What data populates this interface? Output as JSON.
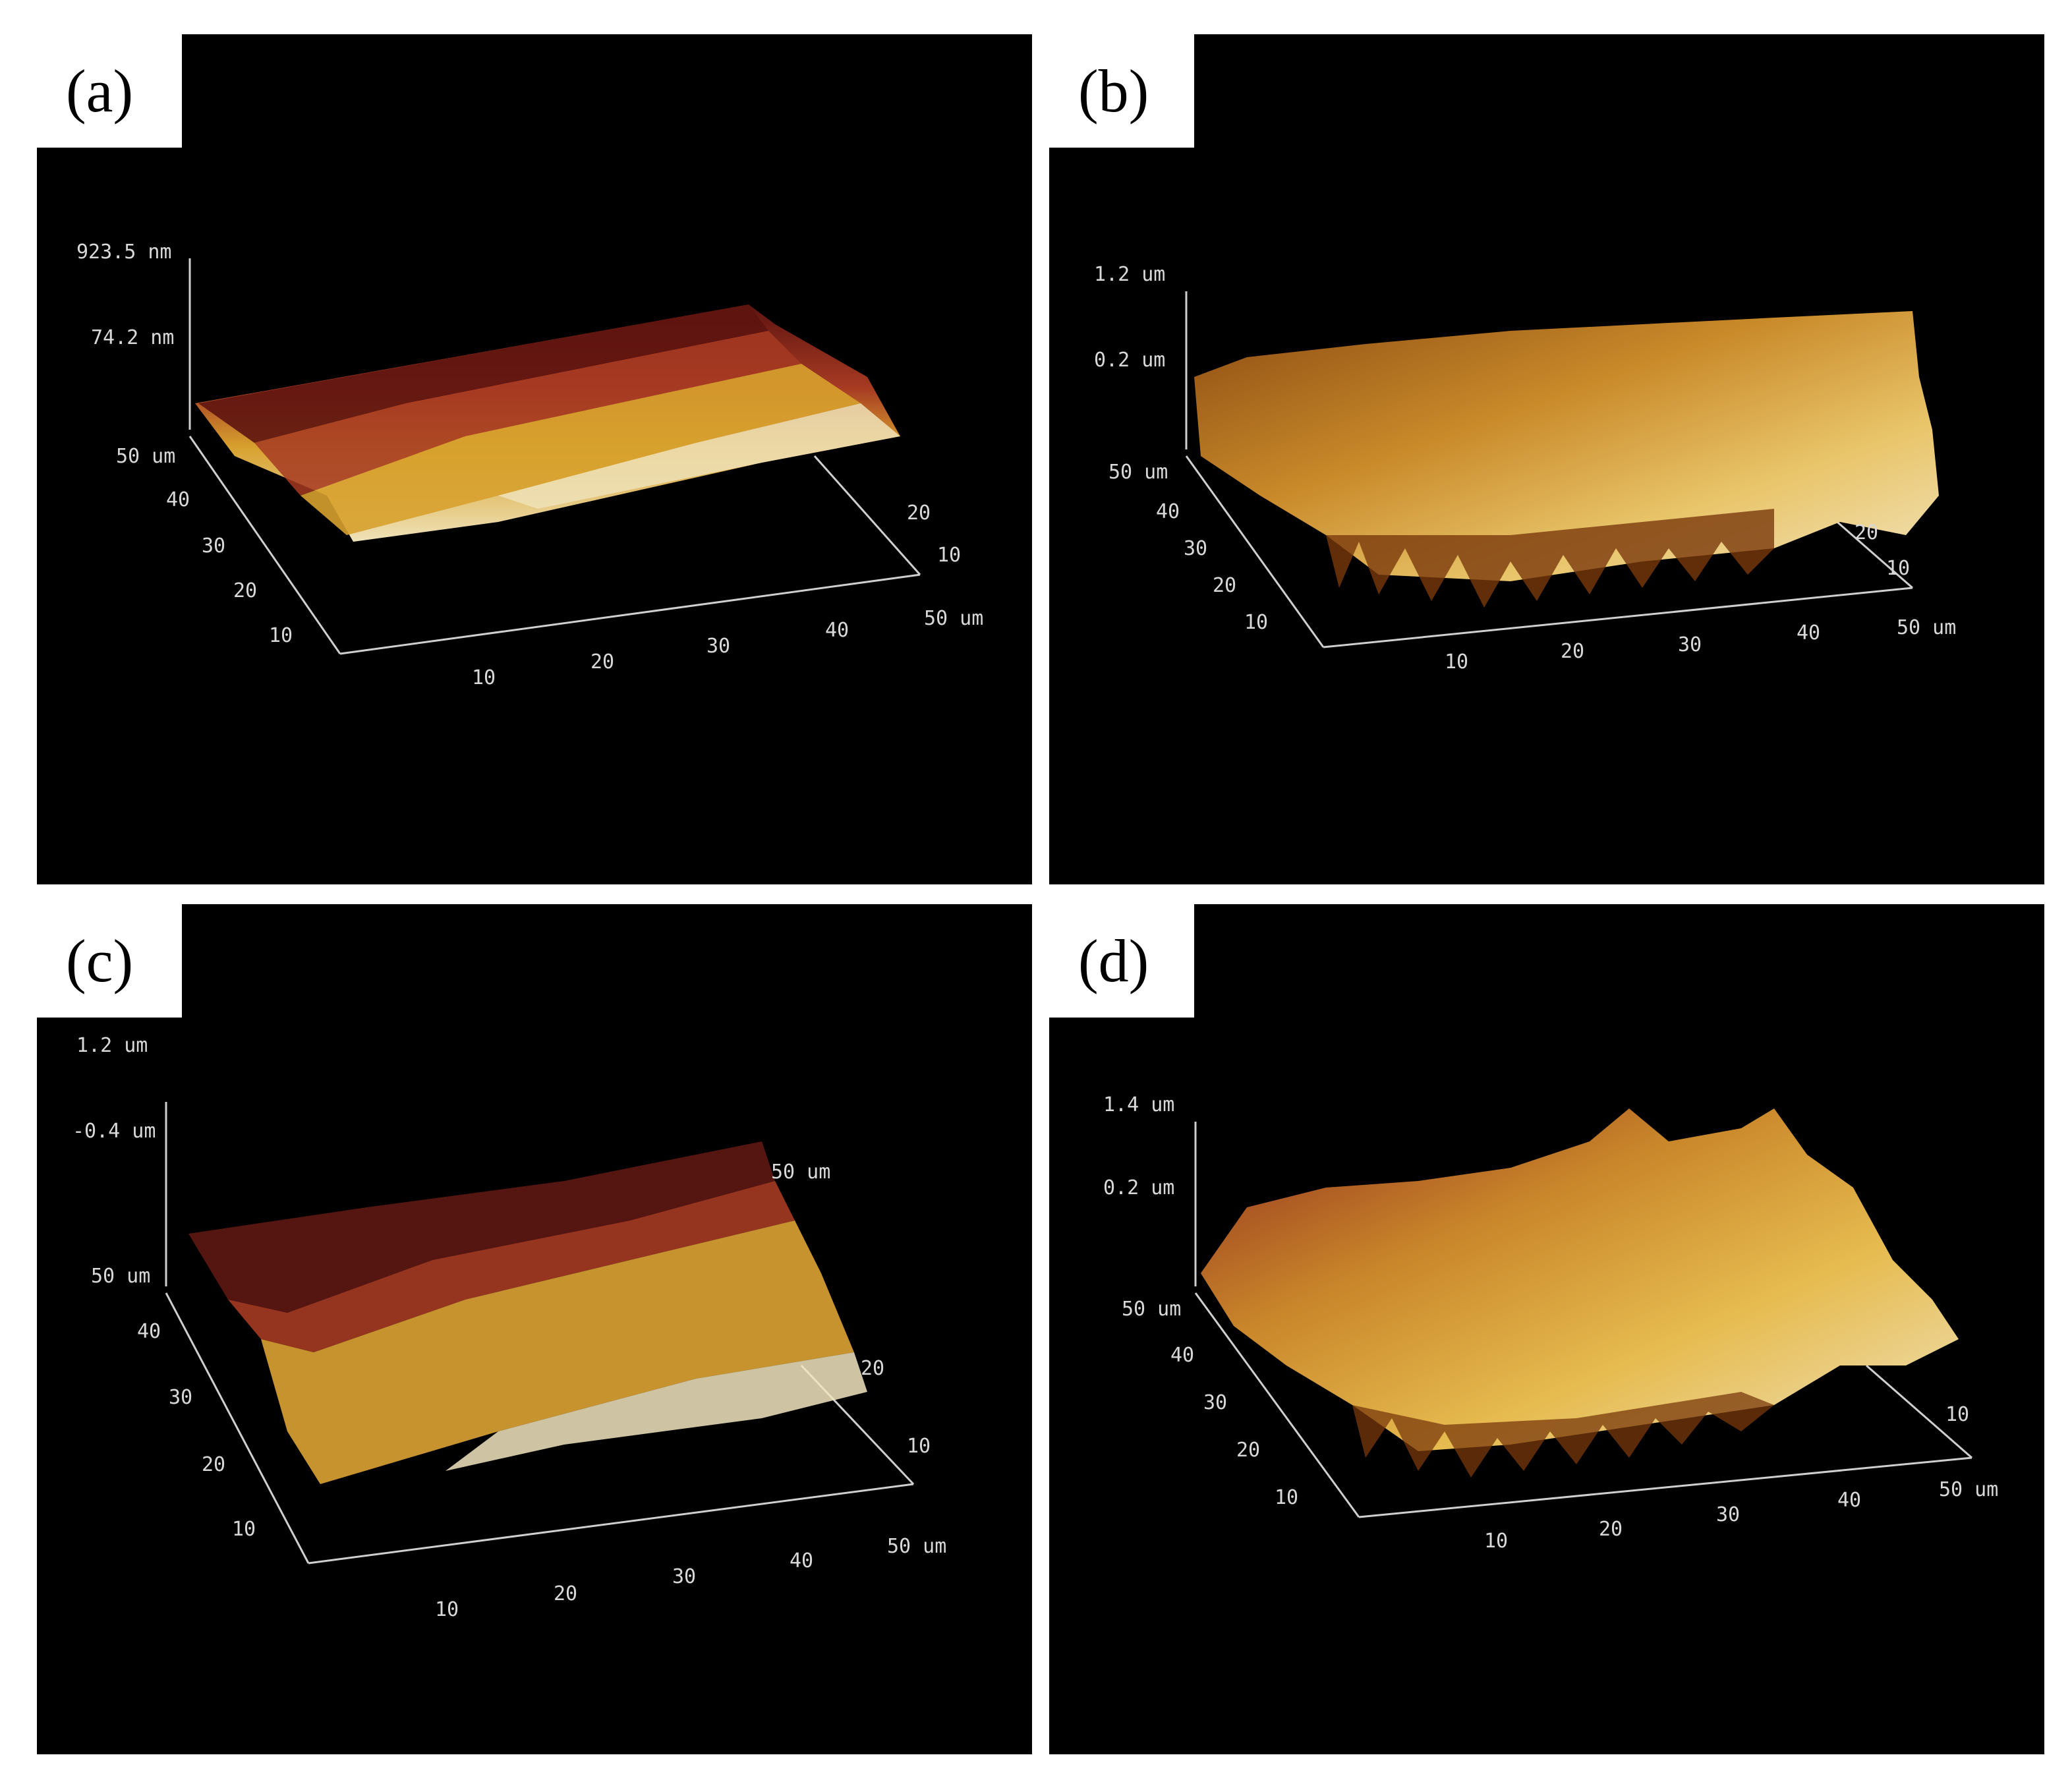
{
  "panels": [
    {
      "id": "a",
      "label": "(a)",
      "z_max": "923.5 nm",
      "z_mid": "74.2 nm",
      "y_ticks": [
        "50 um",
        "40",
        "30",
        "20",
        "10"
      ],
      "x_ticks": [
        "10",
        "20",
        "30",
        "40",
        "50 um"
      ],
      "depth_ticks": [
        "20",
        "10"
      ],
      "colors": [
        "#5e1410",
        "#a63a22",
        "#d7a12e",
        "#efe2b8"
      ]
    },
    {
      "id": "b",
      "label": "(b)",
      "z_max": "1.2 um",
      "z_mid": "0.2 um",
      "y_ticks": [
        "50 um",
        "40",
        "30",
        "20",
        "10"
      ],
      "x_ticks": [
        "10",
        "20",
        "30",
        "40",
        "50 um"
      ],
      "depth_ticks": [
        "20",
        "10"
      ],
      "colors": [
        "#8a4a12",
        "#c98a2a",
        "#e9c56a",
        "#f1e4bd"
      ]
    },
    {
      "id": "c",
      "label": "(c)",
      "z_max": "1.2 um",
      "z_mid": "-0.4 um",
      "y_ticks": [
        "50 um",
        "40",
        "30",
        "20",
        "10"
      ],
      "x_ticks": [
        "10",
        "20",
        "30",
        "40",
        "50 um"
      ],
      "depth_ticks": [
        "50 um",
        "20",
        "10"
      ],
      "colors": [
        "#5a1612",
        "#a53a22",
        "#d8a033",
        "#f2e6c0"
      ]
    },
    {
      "id": "d",
      "label": "(d)",
      "z_max": "1.4 um",
      "z_mid": "0.2 um",
      "y_ticks": [
        "50 um",
        "40",
        "30",
        "20",
        "10"
      ],
      "x_ticks": [
        "10",
        "20",
        "30",
        "40",
        "50 um"
      ],
      "depth_ticks": [
        "10"
      ],
      "colors": [
        "#8e2a1c",
        "#c9862a",
        "#e6bb4f",
        "#f0e3bd"
      ]
    }
  ]
}
